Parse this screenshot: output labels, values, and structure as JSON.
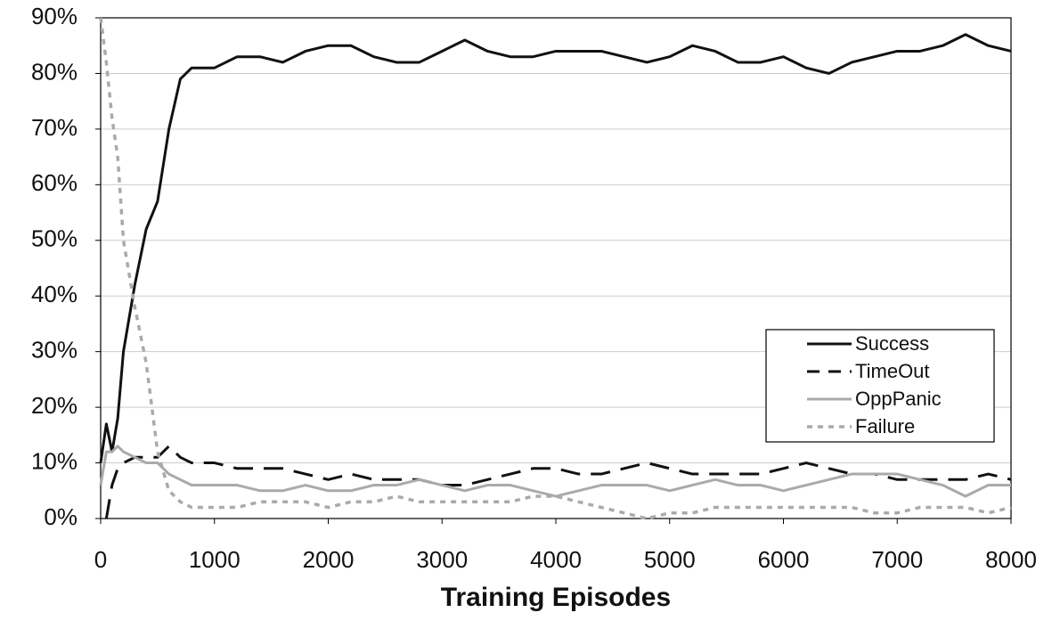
{
  "chart_data": {
    "type": "line",
    "xlabel": "Training Episodes",
    "x": [
      0,
      50,
      100,
      150,
      200,
      300,
      400,
      500,
      600,
      700,
      800,
      1000,
      1200,
      1400,
      1600,
      1800,
      2000,
      2200,
      2400,
      2600,
      2800,
      3000,
      3200,
      3400,
      3600,
      3800,
      4000,
      4200,
      4400,
      4600,
      4800,
      5000,
      5200,
      5400,
      5600,
      5800,
      6000,
      6200,
      6400,
      6600,
      6800,
      7000,
      7200,
      7400,
      7600,
      7800,
      8000
    ],
    "series": [
      {
        "name": "Success",
        "color": "#111111",
        "dash": "solid",
        "values": [
          10,
          17,
          12,
          18,
          30,
          42,
          52,
          57,
          70,
          79,
          81,
          81,
          83,
          83,
          82,
          84,
          85,
          85,
          83,
          82,
          82,
          84,
          86,
          84,
          83,
          83,
          84,
          84,
          84,
          83,
          82,
          83,
          85,
          84,
          82,
          82,
          83,
          81,
          80,
          82,
          83,
          84,
          84,
          85,
          87,
          85,
          84
        ]
      },
      {
        "name": "TimeOut",
        "color": "#111111",
        "dash": "dashed",
        "values": [
          null,
          0,
          6,
          9,
          10,
          11,
          11,
          11,
          13,
          11,
          10,
          10,
          9,
          9,
          9,
          8,
          7,
          8,
          7,
          7,
          7,
          6,
          6,
          7,
          8,
          9,
          9,
          8,
          8,
          9,
          10,
          9,
          8,
          8,
          8,
          8,
          9,
          10,
          9,
          8,
          8,
          7,
          7,
          7,
          7,
          8,
          7
        ]
      },
      {
        "name": "OppPanic",
        "color": "#aaaaaa",
        "dash": "solid",
        "values": [
          6,
          12,
          12,
          13,
          12,
          11,
          10,
          10,
          8,
          7,
          6,
          6,
          6,
          5,
          5,
          6,
          5,
          5,
          6,
          6,
          7,
          6,
          5,
          6,
          6,
          5,
          4,
          5,
          6,
          6,
          6,
          5,
          6,
          7,
          6,
          6,
          5,
          6,
          7,
          8,
          8,
          8,
          7,
          6,
          4,
          6,
          6
        ]
      },
      {
        "name": "Failure",
        "color": "#aaaaaa",
        "dash": "dotted",
        "values": [
          90,
          82,
          72,
          65,
          50,
          38,
          28,
          12,
          5,
          3,
          2,
          2,
          2,
          3,
          3,
          3,
          2,
          3,
          3,
          4,
          3,
          3,
          3,
          3,
          3,
          4,
          4,
          3,
          2,
          1,
          0,
          1,
          1,
          2,
          2,
          2,
          2,
          2,
          2,
          2,
          1,
          1,
          2,
          2,
          2,
          1,
          2
        ]
      }
    ],
    "xlim": [
      0,
      8000
    ],
    "xticks": [
      0,
      1000,
      2000,
      3000,
      4000,
      5000,
      6000,
      7000,
      8000
    ],
    "ylim": [
      0,
      90
    ],
    "yticks": [
      {
        "value": 0,
        "label": "0%"
      },
      {
        "value": 10,
        "label": "10%"
      },
      {
        "value": 20,
        "label": "20%"
      },
      {
        "value": 30,
        "label": "30%"
      },
      {
        "value": 40,
        "label": "40%"
      },
      {
        "value": 50,
        "label": "50%"
      },
      {
        "value": 60,
        "label": "60%"
      },
      {
        "value": 70,
        "label": "70%"
      },
      {
        "value": 80,
        "label": "80%"
      },
      {
        "value": 90,
        "label": "90%"
      }
    ],
    "grid": true,
    "legend": "right"
  }
}
